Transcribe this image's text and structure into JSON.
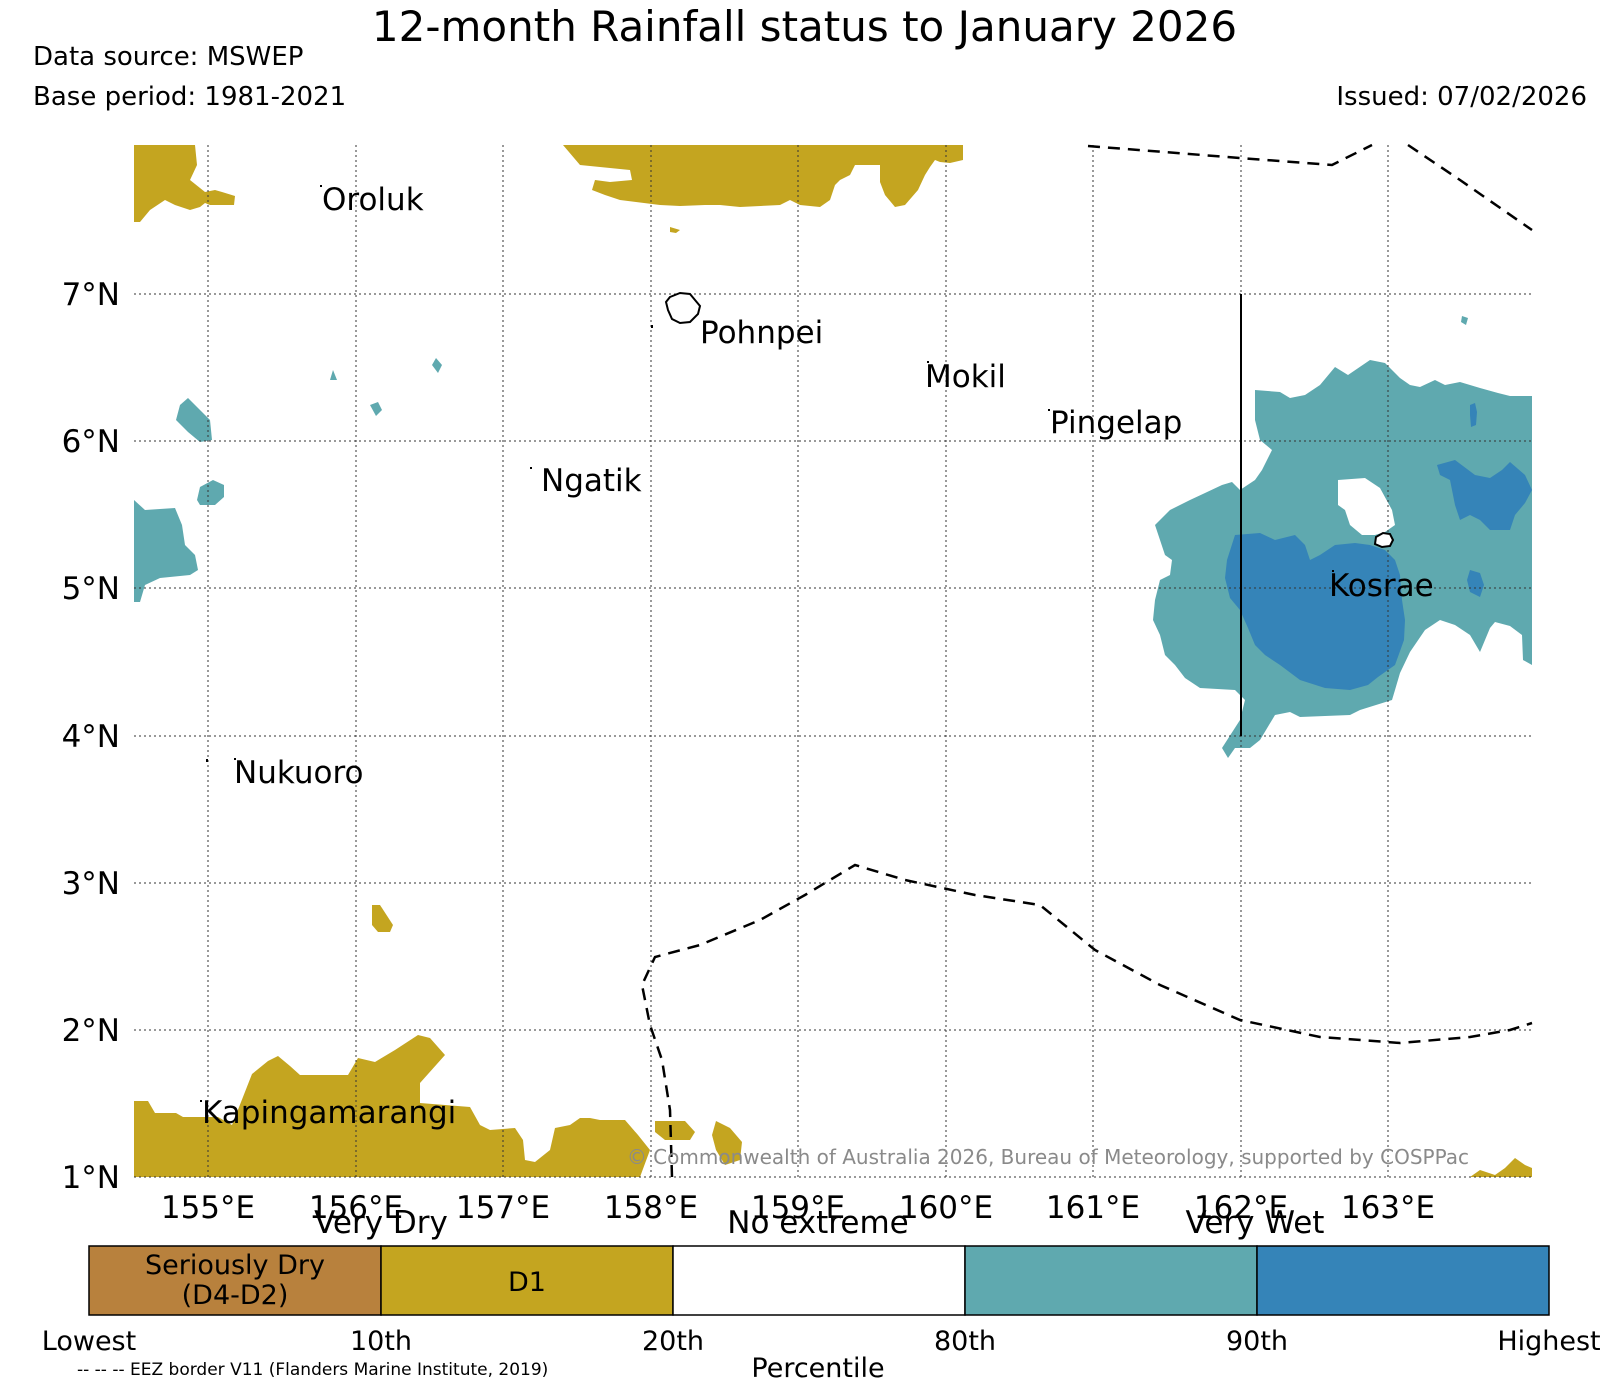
{
  "header": {
    "title": "12-month Rainfall status to January 2026",
    "data_source": "Data source: MSWEP",
    "base_period": "Base period: 1981-2021",
    "issued": "Issued: 07/02/2026"
  },
  "map": {
    "lat_labels": [
      "7°N",
      "6°N",
      "5°N",
      "4°N",
      "3°N",
      "2°N",
      "1°N"
    ],
    "lon_labels": [
      "155°E",
      "156°E",
      "157°E",
      "158°E",
      "159°E",
      "160°E",
      "161°E",
      "162°E",
      "163°E"
    ],
    "places": {
      "oroluk": "Oroluk",
      "pohnpei": "Pohnpei",
      "mokil": "Mokil",
      "pingelap": "Pingelap",
      "ngatik": "Ngatik",
      "kosrae": "Kosrae",
      "nukuoro": "Nukuoro",
      "kapingamarangi": "Kapingamarangi"
    },
    "copyright": "© Commonwealth of Australia 2026, Bureau of Meteorology, supported by COSPPac"
  },
  "legend": {
    "categories": [
      "Very Dry",
      "No extreme",
      "Very Wet"
    ],
    "boxes": [
      {
        "label": "Seriously Dry (D4-D2)",
        "line1": "Seriously Dry",
        "line2": "(D4-D2)",
        "color": "#b8813d"
      },
      {
        "label": "D1",
        "color": "#c4a520"
      },
      {
        "label": "",
        "color": "#ffffff"
      },
      {
        "label": "",
        "color": "#5fa9af"
      },
      {
        "label": "",
        "color": "#3584b8"
      }
    ],
    "ticks": [
      "Lowest",
      "10th",
      "20th",
      "80th",
      "90th",
      "Highest"
    ],
    "axis_title": "Percentile",
    "eez_note": "-- -- -- EEZ border V11 (Flanders Marine Institute, 2019)"
  },
  "colors": {
    "d1": "#c4a520",
    "wet": "#5fa9af",
    "very_wet": "#3584b8",
    "serious_dry": "#b8813d"
  }
}
